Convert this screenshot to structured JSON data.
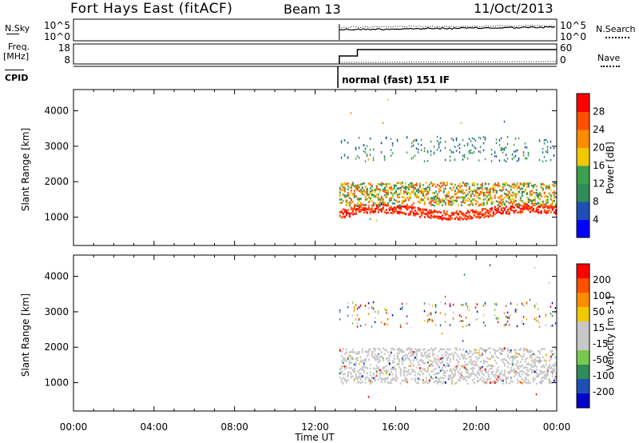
{
  "header": {
    "station": "Fort Hays East (fitACF)",
    "beam": "Beam 13",
    "date": "11/Oct/2013"
  },
  "left_labels": {
    "nsky": "N.Sky",
    "freq": "Freq.",
    "freq_unit": "[MHz]",
    "cpid": "CPID"
  },
  "right_labels": {
    "nsearch": "N.Search",
    "nave": "Nave"
  },
  "noise_panel": {
    "yticks_left": [
      "10^5",
      "10^0"
    ],
    "yticks_right": [
      "10^5",
      "10^0"
    ]
  },
  "freq_panel": {
    "yticks_left": [
      "18",
      "8"
    ],
    "yticks_right": [
      "60",
      "0"
    ]
  },
  "cpid_label": "normal (fast) 151 IF",
  "colors": {
    "power": [
      "#0000ff",
      "#1e50b4",
      "#2f8b57",
      "#3ca050",
      "#f0c800",
      "#ff8c00",
      "#ff5000",
      "#ff0000"
    ],
    "velocity": [
      "#ff0000",
      "#ff5000",
      "#ff8c00",
      "#f0c800",
      "#c8c8c8",
      "#c8c8c8",
      "#78c850",
      "#2f8b57",
      "#1e50b4",
      "#0000cc"
    ]
  },
  "chart_data": [
    {
      "type": "heatmap",
      "title": "Power",
      "ylabel": "Slant Range [km]",
      "xlabel": "Time UT",
      "x_ticks": [
        "00:00",
        "04:00",
        "08:00",
        "12:00",
        "16:00",
        "20:00",
        "00:00"
      ],
      "y_ticks": [
        1000,
        2000,
        3000,
        4000
      ],
      "ylim": [
        200,
        4600
      ],
      "colorbar": {
        "label": "Power [dB]",
        "ticks": [
          4,
          8,
          12,
          16,
          20,
          24,
          28
        ]
      },
      "data_start_hour": 13.2,
      "echo_bands": [
        {
          "range_km": [
            1000,
            1300
          ],
          "level": "high"
        },
        {
          "range_km": [
            1400,
            2000
          ],
          "level": "medium"
        },
        {
          "range_km": [
            2700,
            3300
          ],
          "level": "low"
        }
      ]
    },
    {
      "type": "heatmap",
      "title": "Velocity",
      "ylabel": "Slant Range [km]",
      "xlabel": "Time UT",
      "x_ticks": [
        "00:00",
        "04:00",
        "08:00",
        "12:00",
        "16:00",
        "20:00",
        "00:00"
      ],
      "y_ticks": [
        1000,
        2000,
        3000,
        4000
      ],
      "ylim": [
        200,
        4600
      ],
      "colorbar": {
        "label": "Velocity [m s-1]",
        "ticks": [
          200,
          100,
          50,
          15,
          -15,
          -50,
          -100,
          -200
        ]
      },
      "data_start_hour": 13.2,
      "echo_bands": [
        {
          "range_km": [
            1000,
            2000
          ],
          "level": "near-zero"
        },
        {
          "range_km": [
            2700,
            3300
          ],
          "level": "scattered"
        }
      ]
    }
  ]
}
